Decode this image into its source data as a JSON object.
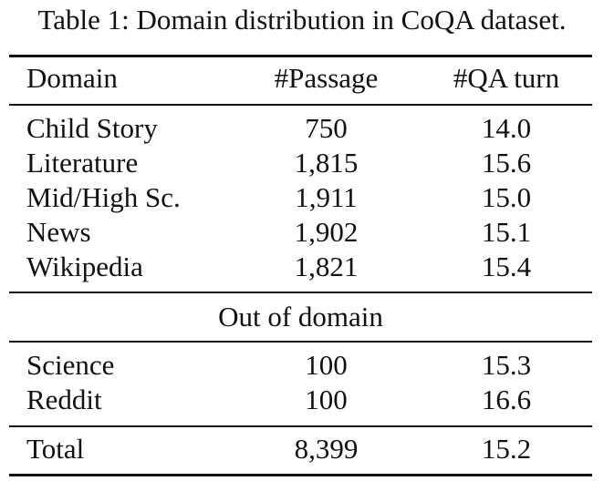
{
  "caption": "Table 1: Domain distribution in CoQA dataset.",
  "headers": [
    "Domain",
    "#Passage",
    "#QA turn"
  ],
  "in_domain_rows": [
    [
      "Child Story",
      "750",
      "14.0"
    ],
    [
      "Literature",
      "1,815",
      "15.6"
    ],
    [
      "Mid/High Sc.",
      "1,911",
      "15.0"
    ],
    [
      "News",
      "1,902",
      "15.1"
    ],
    [
      "Wikipedia",
      "1,821",
      "15.4"
    ]
  ],
  "out_of_domain_label": "Out of domain",
  "out_of_domain_rows": [
    [
      "Science",
      "100",
      "15.3"
    ],
    [
      "Reddit",
      "100",
      "16.6"
    ]
  ],
  "total_row": [
    "Total",
    "8,399",
    "15.2"
  ]
}
